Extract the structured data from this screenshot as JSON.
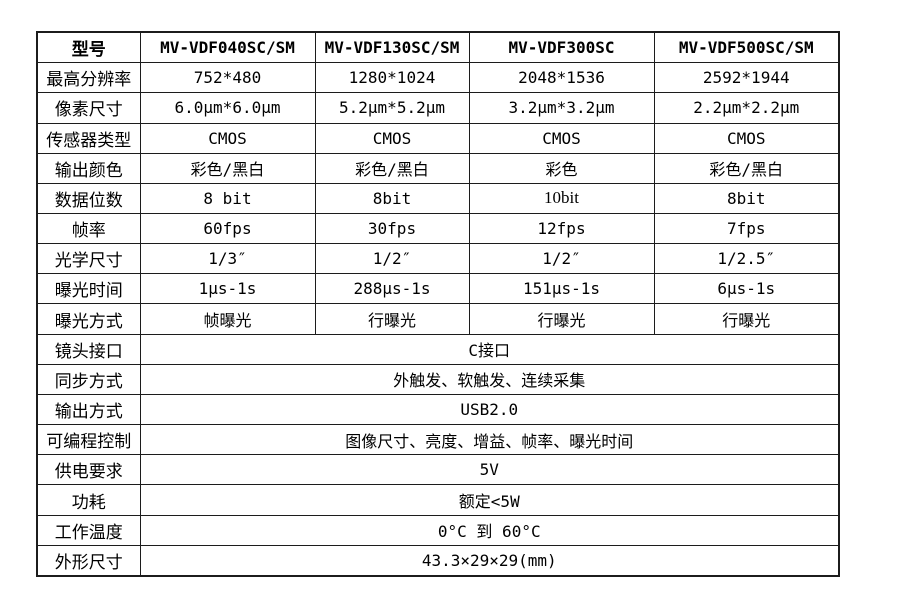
{
  "colors": {
    "background": "#ffffff",
    "border": "#1c1c1c",
    "text": "#000000"
  },
  "table": {
    "header": {
      "model_label": "型号",
      "models": [
        "MV-VDF040SC/SM",
        "MV-VDF130SC/SM",
        "MV-VDF300SC",
        "MV-VDF500SC/SM"
      ]
    },
    "spec_rows": [
      {
        "label": "最高分辨率",
        "values": [
          "752*480",
          "1280*1024",
          "2048*1536",
          "2592*1944"
        ]
      },
      {
        "label": "像素尺寸",
        "values": [
          "6.0μm*6.0μm",
          "5.2μm*5.2μm",
          "3.2μm*3.2μm",
          "2.2μm*2.2μm"
        ]
      },
      {
        "label": "传感器类型",
        "values": [
          "CMOS",
          "CMOS",
          "CMOS",
          "CMOS"
        ]
      },
      {
        "label": "输出颜色",
        "values": [
          "彩色/黑白",
          "彩色/黑白",
          "彩色",
          "彩色/黑白"
        ]
      },
      {
        "label": "数据位数",
        "values": [
          "8 bit",
          "8bit",
          "10bit",
          "8bit"
        ]
      },
      {
        "label": "帧率",
        "values": [
          "60fps",
          "30fps",
          "12fps",
          "7fps"
        ]
      },
      {
        "label": "光学尺寸",
        "values": [
          "1/3″",
          "1/2″",
          "1/2″",
          "1/2.5″"
        ]
      },
      {
        "label": "曝光时间",
        "values": [
          "1μs-1s",
          "288μs-1s",
          "151μs-1s",
          "6μs-1s"
        ]
      },
      {
        "label": "曝光方式",
        "values": [
          "帧曝光",
          "行曝光",
          "行曝光",
          "行曝光"
        ]
      }
    ],
    "span_rows": [
      {
        "label": "镜头接口",
        "value": "C接口"
      },
      {
        "label": "同步方式",
        "value": "外触发、软触发、连续采集"
      },
      {
        "label": "输出方式",
        "value": "USB2.0"
      },
      {
        "label": "可编程控制",
        "value": "图像尺寸、亮度、增益、帧率、曝光时间"
      },
      {
        "label": "供电要求",
        "value": "5V"
      },
      {
        "label": "功耗",
        "value": "额定<5W"
      },
      {
        "label": "工作温度",
        "value": "0°C 到 60°C"
      },
      {
        "label": "外形尺寸",
        "value": "43.3×29×29(mm)"
      }
    ]
  }
}
